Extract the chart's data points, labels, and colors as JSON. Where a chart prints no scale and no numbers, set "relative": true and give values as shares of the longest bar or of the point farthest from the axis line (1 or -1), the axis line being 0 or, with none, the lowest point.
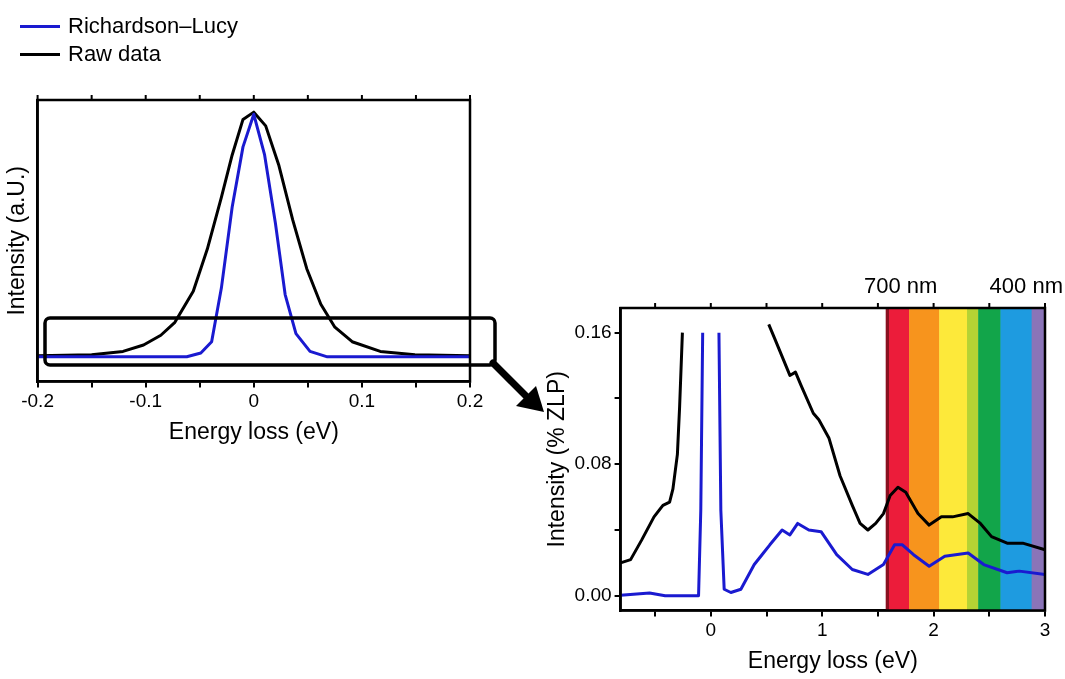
{
  "chart_data": [
    {
      "type": "line",
      "xlabel": "Energy loss (eV)",
      "ylabel": "Intensity (a.U.)",
      "relative": true,
      "legend": "top left",
      "tick_labels": "x",
      "xlim": [
        -0.2,
        0.2
      ],
      "xticks": [
        -0.2,
        {
          "value": -0.15,
          "label": null
        },
        -0.1,
        {
          "value": -0.05,
          "label": null
        },
        0.0,
        {
          "value": 0.05,
          "label": null
        },
        0.1,
        {
          "value": 0.15,
          "label": null
        },
        0.2
      ],
      "series": [
        {
          "name": "Richardson–Lucy",
          "color": "#1a1ad0",
          "x": [
            -0.2,
            -0.062,
            -0.049,
            -0.039,
            -0.03,
            -0.02,
            -0.01,
            0,
            0.01,
            0.02,
            0.029,
            0.039,
            0.052,
            0.068,
            0.2
          ],
          "values": [
            0.092,
            0.092,
            0.106,
            0.148,
            0.347,
            0.648,
            0.871,
            0.992,
            0.841,
            0.588,
            0.323,
            0.178,
            0.112,
            0.092,
            0.092
          ]
        },
        {
          "name": "Raw data",
          "color": "#000000",
          "x": [
            -0.2,
            -0.15,
            -0.121,
            -0.102,
            -0.086,
            -0.073,
            -0.056,
            -0.043,
            -0.03,
            -0.02,
            -0.01,
            0,
            0.011,
            0.023,
            0.036,
            0.049,
            0.062,
            0.075,
            0.091,
            0.117,
            0.149,
            0.2
          ],
          "values": [
            0.096,
            0.1,
            0.112,
            0.136,
            0.172,
            0.22,
            0.335,
            0.492,
            0.684,
            0.841,
            0.973,
            1,
            0.949,
            0.805,
            0.6,
            0.419,
            0.287,
            0.202,
            0.148,
            0.112,
            0.1,
            0.096
          ]
        }
      ]
    },
    {
      "type": "line",
      "xlabel": "Energy loss (eV)",
      "ylabel": "Intensity (% ZLP)",
      "annotations": [
        "700 nm",
        "400 nm"
      ],
      "xlim": [
        -0.81,
        3
      ],
      "xticks": [
        {
          "value": -0.5,
          "label": null
        },
        0,
        {
          "value": 0.5,
          "label": null
        },
        1,
        {
          "value": 1.5,
          "label": null
        },
        2,
        {
          "value": 2.5,
          "label": null
        },
        3
      ],
      "ylim": [
        -0.009,
        0.175
      ],
      "yticks": [
        {
          "value": 0,
          "label": "0.00"
        },
        {
          "value": 0.04,
          "label": null
        },
        {
          "value": 0.08,
          "label": "0.08"
        },
        {
          "value": 0.12,
          "label": null
        },
        {
          "value": 0.16,
          "label": "0.16"
        }
      ],
      "bands": [
        {
          "axis": "x",
          "from": 1.57,
          "to": 1.6,
          "color": "#8a1020"
        },
        {
          "axis": "x",
          "from": 1.6,
          "to": 1.78,
          "color": "#ec1c3a"
        },
        {
          "axis": "x",
          "from": 1.78,
          "to": 2.05,
          "color": "#f7941d"
        },
        {
          "axis": "x",
          "from": 2.05,
          "to": 2.3,
          "color": "#fde93a"
        },
        {
          "axis": "x",
          "from": 2.3,
          "to": 2.4,
          "color": "#b5d334"
        },
        {
          "axis": "x",
          "from": 2.4,
          "to": 2.6,
          "color": "#12a54a"
        },
        {
          "axis": "x",
          "from": 2.6,
          "to": 2.88,
          "color": "#1e9be0"
        },
        {
          "axis": "x",
          "from": 2.88,
          "to": 3,
          "color": "#8a74b8"
        }
      ],
      "series": [
        {
          "color": "#1a1ad0",
          "x": [
            -0.81,
            -0.55,
            -0.41,
            -0.11,
            -0.09,
            -0.073,
            0,
            0.073,
            0.09,
            0.12,
            0.18,
            0.27,
            0.39,
            0.53,
            0.64,
            0.71,
            0.78,
            0.88,
            0.99,
            1.13,
            1.27,
            1.41,
            1.55,
            1.65,
            1.72,
            1.82,
            1.96,
            2.1,
            2.31,
            2.45,
            2.66,
            2.77,
            3.0
          ],
          "values": [
            0.0004,
            0.0017,
            0,
            0,
            0.052,
            0.16,
            null,
            0.16,
            0.052,
            0.004,
            0.002,
            0.004,
            0.019,
            0.031,
            0.04,
            0.037,
            0.044,
            0.04,
            0.039,
            0.025,
            0.016,
            0.013,
            0.019,
            0.031,
            0.031,
            0.025,
            0.018,
            0.024,
            0.026,
            0.019,
            0.014,
            0.015,
            0.013
          ]
        },
        {
          "color": "#000000",
          "x": [
            -0.81,
            -0.72,
            -0.62,
            -0.51,
            -0.43,
            -0.37,
            -0.34,
            -0.3,
            -0.28,
            -0.255,
            0.1,
            0.52,
            0.57,
            0.71,
            0.76,
            0.81,
            0.92,
            0.97,
            1.06,
            1.16,
            1.27,
            1.34,
            1.41,
            1.48,
            1.55,
            1.61,
            1.68,
            1.75,
            1.86,
            1.96,
            2.07,
            2.17,
            2.31,
            2.42,
            2.52,
            2.66,
            2.8,
            3.0
          ],
          "values": [
            0.02,
            0.022,
            0.034,
            0.048,
            0.055,
            0.057,
            0.065,
            0.086,
            0.115,
            0.16,
            null,
            0.165,
            0.157,
            0.134,
            0.136,
            0.128,
            0.111,
            0.107,
            0.096,
            0.073,
            0.055,
            0.044,
            0.04,
            0.044,
            0.05,
            0.061,
            0.066,
            0.063,
            0.05,
            0.043,
            0.048,
            0.048,
            0.05,
            0.044,
            0.036,
            0.032,
            0.032,
            0.028
          ]
        }
      ]
    }
  ]
}
